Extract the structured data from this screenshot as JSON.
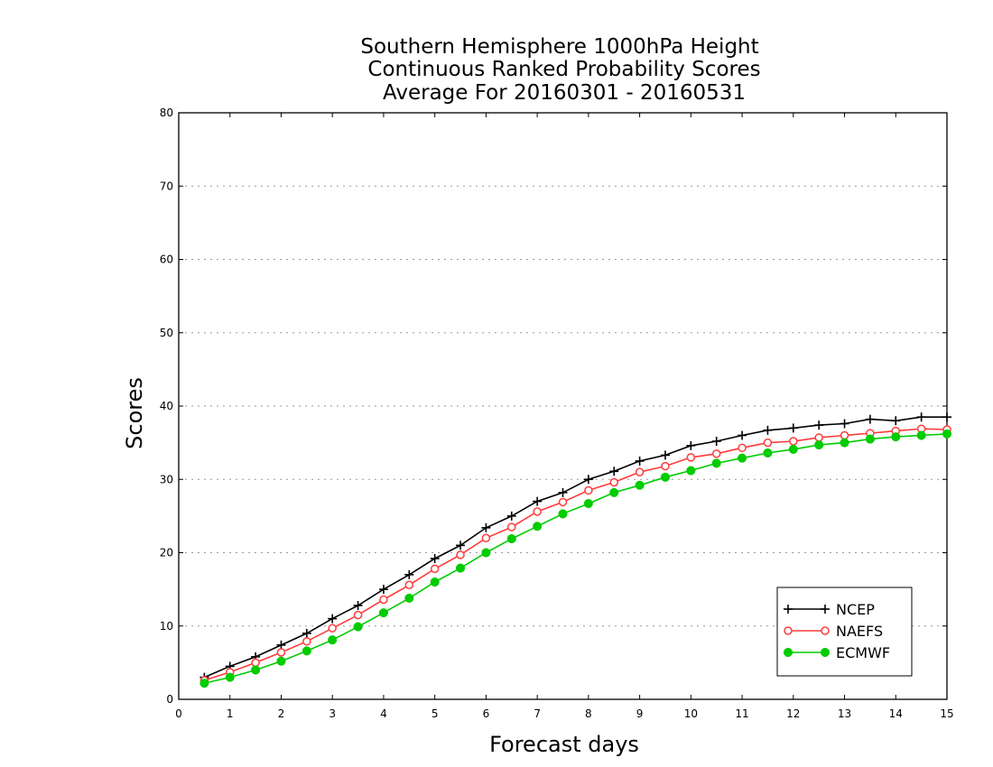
{
  "chart_data": {
    "type": "line",
    "title": [
      "Southern Hemisphere 1000hPa Height",
      "Continuous Ranked Probability Scores",
      "Average For 20160301 - 20160531"
    ],
    "xlabel": "Forecast days",
    "ylabel": "Scores",
    "xlim": [
      0,
      15
    ],
    "ylim": [
      0,
      80
    ],
    "xticks": [
      "0",
      "1",
      "2",
      "3",
      "4",
      "5",
      "6",
      "7",
      "8",
      "9",
      "10",
      "11",
      "12",
      "13",
      "14",
      "15"
    ],
    "yticks": [
      "0",
      "10",
      "20",
      "30",
      "40",
      "50",
      "60",
      "70",
      "80"
    ],
    "grid": "horizontal dotted",
    "legend_position": "bottom-right",
    "x": [
      0.5,
      1,
      1.5,
      2,
      2.5,
      3,
      3.5,
      4,
      4.5,
      5,
      5.5,
      6,
      6.5,
      7,
      7.5,
      8,
      8.5,
      9,
      9.5,
      10,
      10.5,
      11,
      11.5,
      12,
      12.5,
      13,
      13.5,
      14,
      14.5,
      15
    ],
    "series": [
      {
        "name": "NCEP",
        "color": "#000000",
        "marker": "plus",
        "values": [
          3.0,
          4.5,
          5.8,
          7.4,
          9.0,
          11.0,
          12.8,
          15.0,
          17.0,
          19.2,
          21.0,
          23.4,
          25.0,
          27.0,
          28.2,
          30.0,
          31.1,
          32.5,
          33.3,
          34.6,
          35.2,
          36.0,
          36.7,
          37.0,
          37.4,
          37.6,
          38.2,
          38.0,
          38.5,
          38.5
        ]
      },
      {
        "name": "NAEFS",
        "color": "#ff3b3b",
        "marker": "open-circle",
        "values": [
          2.6,
          3.7,
          5.0,
          6.4,
          7.9,
          9.7,
          11.5,
          13.6,
          15.6,
          17.8,
          19.7,
          22.0,
          23.5,
          25.6,
          26.9,
          28.5,
          29.6,
          31.0,
          31.8,
          33.0,
          33.5,
          34.3,
          35.0,
          35.2,
          35.7,
          36.0,
          36.3,
          36.6,
          36.9,
          36.8
        ]
      },
      {
        "name": "ECMWF",
        "color": "#00cc00",
        "marker": "filled-circle",
        "values": [
          2.2,
          3.0,
          4.0,
          5.2,
          6.6,
          8.1,
          9.9,
          11.8,
          13.8,
          16.0,
          17.9,
          20.0,
          21.9,
          23.6,
          25.3,
          26.7,
          28.2,
          29.2,
          30.3,
          31.2,
          32.2,
          32.9,
          33.6,
          34.1,
          34.7,
          35.0,
          35.5,
          35.8,
          36.0,
          36.2
        ]
      }
    ]
  }
}
